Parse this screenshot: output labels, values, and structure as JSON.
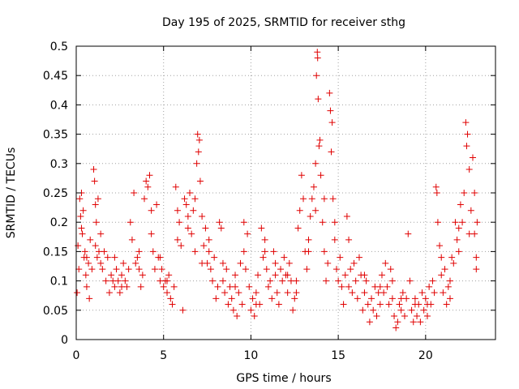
{
  "chart_data": {
    "type": "scatter",
    "title": "Day 195 of 2025, SRMTID for receiver sthg",
    "xlabel": "GPS time / hours",
    "ylabel": "SRMTID / TECUs",
    "xlim": [
      0,
      24
    ],
    "ylim": [
      0,
      0.5
    ],
    "xticks": [
      0,
      5,
      10,
      15,
      20
    ],
    "xtick_labels": [
      "0",
      "5",
      "10",
      "15",
      "20"
    ],
    "yticks": [
      0,
      0.05,
      0.1,
      0.15,
      0.2,
      0.25,
      0.3,
      0.35,
      0.4,
      0.45,
      0.5
    ],
    "ytick_labels": [
      "0",
      "0.05",
      "0.1",
      "0.15",
      "0.2",
      "0.25",
      "0.3",
      "0.35",
      "0.4",
      "0.45",
      "0.5"
    ],
    "grid": true,
    "marker": "+",
    "color": "#e00000",
    "series": [
      {
        "name": "SRMTID",
        "points": [
          [
            0.05,
            0.08
          ],
          [
            0.1,
            0.16
          ],
          [
            0.15,
            0.12
          ],
          [
            0.2,
            0.24
          ],
          [
            0.25,
            0.21
          ],
          [
            0.3,
            0.25
          ],
          [
            0.35,
            0.18
          ],
          [
            0.4,
            0.22
          ],
          [
            0.45,
            0.14
          ],
          [
            0.5,
            0.15
          ],
          [
            0.55,
            0.11
          ],
          [
            0.6,
            0.09
          ],
          [
            0.7,
            0.13
          ],
          [
            0.75,
            0.07
          ],
          [
            0.8,
            0.17
          ],
          [
            0.9,
            0.12
          ],
          [
            1.0,
            0.29
          ],
          [
            1.05,
            0.27
          ],
          [
            1.1,
            0.16
          ],
          [
            1.15,
            0.2
          ],
          [
            1.2,
            0.14
          ],
          [
            1.25,
            0.24
          ],
          [
            1.3,
            0.15
          ],
          [
            1.4,
            0.18
          ],
          [
            1.5,
            0.12
          ],
          [
            1.6,
            0.15
          ],
          [
            1.7,
            0.1
          ],
          [
            1.8,
            0.14
          ],
          [
            1.9,
            0.08
          ],
          [
            2.0,
            0.11
          ],
          [
            2.1,
            0.1
          ],
          [
            2.2,
            0.09
          ],
          [
            2.3,
            0.12
          ],
          [
            2.4,
            0.1
          ],
          [
            2.5,
            0.08
          ],
          [
            2.6,
            0.11
          ],
          [
            2.7,
            0.13
          ],
          [
            2.8,
            0.1
          ],
          [
            2.9,
            0.09
          ],
          [
            3.0,
            0.12
          ],
          [
            3.1,
            0.2
          ],
          [
            3.2,
            0.17
          ],
          [
            3.3,
            0.25
          ],
          [
            3.4,
            0.13
          ],
          [
            3.5,
            0.14
          ],
          [
            3.6,
            0.12
          ],
          [
            3.7,
            0.09
          ],
          [
            3.8,
            0.11
          ],
          [
            3.9,
            0.24
          ],
          [
            4.0,
            0.27
          ],
          [
            4.1,
            0.26
          ],
          [
            4.2,
            0.28
          ],
          [
            4.3,
            0.22
          ],
          [
            4.4,
            0.15
          ],
          [
            4.5,
            0.12
          ],
          [
            4.6,
            0.23
          ],
          [
            4.7,
            0.14
          ],
          [
            4.8,
            0.1
          ],
          [
            4.9,
            0.12
          ],
          [
            5.0,
            0.09
          ],
          [
            5.1,
            0.1
          ],
          [
            5.2,
            0.08
          ],
          [
            5.3,
            0.11
          ],
          [
            5.4,
            0.07
          ],
          [
            5.5,
            0.06
          ],
          [
            5.6,
            0.09
          ],
          [
            5.7,
            0.26
          ],
          [
            5.8,
            0.22
          ],
          [
            5.9,
            0.2
          ],
          [
            6.0,
            0.16
          ],
          [
            6.1,
            0.05
          ],
          [
            6.2,
            0.24
          ],
          [
            6.3,
            0.23
          ],
          [
            6.4,
            0.19
          ],
          [
            6.5,
            0.25
          ],
          [
            6.6,
            0.18
          ],
          [
            6.7,
            0.22
          ],
          [
            6.8,
            0.24
          ],
          [
            6.9,
            0.3
          ],
          [
            6.95,
            0.35
          ],
          [
            7.0,
            0.32
          ],
          [
            7.05,
            0.34
          ],
          [
            7.1,
            0.27
          ],
          [
            7.2,
            0.21
          ],
          [
            7.3,
            0.16
          ],
          [
            7.4,
            0.19
          ],
          [
            7.5,
            0.13
          ],
          [
            7.6,
            0.17
          ],
          [
            7.7,
            0.12
          ],
          [
            7.8,
            0.1
          ],
          [
            7.9,
            0.14
          ],
          [
            8.0,
            0.07
          ],
          [
            8.1,
            0.09
          ],
          [
            8.2,
            0.2
          ],
          [
            8.3,
            0.19
          ],
          [
            8.4,
            0.1
          ],
          [
            8.5,
            0.08
          ],
          [
            8.6,
            0.12
          ],
          [
            8.7,
            0.06
          ],
          [
            8.8,
            0.09
          ],
          [
            8.9,
            0.07
          ],
          [
            9.0,
            0.05
          ],
          [
            9.1,
            0.11
          ],
          [
            9.2,
            0.04
          ],
          [
            9.3,
            0.08
          ],
          [
            9.4,
            0.13
          ],
          [
            9.5,
            0.06
          ],
          [
            9.6,
            0.2
          ],
          [
            9.7,
            0.12
          ],
          [
            9.8,
            0.18
          ],
          [
            9.9,
            0.09
          ],
          [
            10.0,
            0.05
          ],
          [
            10.1,
            0.07
          ],
          [
            10.2,
            0.04
          ],
          [
            10.3,
            0.08
          ],
          [
            10.4,
            0.11
          ],
          [
            10.5,
            0.06
          ],
          [
            10.6,
            0.19
          ],
          [
            10.7,
            0.14
          ],
          [
            10.8,
            0.17
          ],
          [
            10.9,
            0.12
          ],
          [
            11.0,
            0.09
          ],
          [
            11.1,
            0.1
          ],
          [
            11.2,
            0.07
          ],
          [
            11.3,
            0.15
          ],
          [
            11.4,
            0.11
          ],
          [
            11.5,
            0.08
          ],
          [
            11.6,
            0.06
          ],
          [
            11.7,
            0.12
          ],
          [
            11.8,
            0.1
          ],
          [
            11.9,
            0.14
          ],
          [
            12.0,
            0.11
          ],
          [
            12.1,
            0.08
          ],
          [
            12.2,
            0.13
          ],
          [
            12.3,
            0.1
          ],
          [
            12.4,
            0.05
          ],
          [
            12.5,
            0.07
          ],
          [
            12.6,
            0.1
          ],
          [
            12.7,
            0.19
          ],
          [
            12.8,
            0.22
          ],
          [
            12.9,
            0.28
          ],
          [
            13.0,
            0.24
          ],
          [
            13.1,
            0.15
          ],
          [
            13.2,
            0.12
          ],
          [
            13.3,
            0.17
          ],
          [
            13.4,
            0.21
          ],
          [
            13.5,
            0.24
          ],
          [
            13.6,
            0.26
          ],
          [
            13.7,
            0.3
          ],
          [
            13.75,
            0.45
          ],
          [
            13.8,
            0.49
          ],
          [
            13.82,
            0.48
          ],
          [
            13.85,
            0.41
          ],
          [
            13.9,
            0.33
          ],
          [
            13.95,
            0.34
          ],
          [
            14.0,
            0.28
          ],
          [
            14.1,
            0.2
          ],
          [
            14.2,
            0.15
          ],
          [
            14.3,
            0.1
          ],
          [
            14.4,
            0.13
          ],
          [
            14.5,
            0.42
          ],
          [
            14.55,
            0.39
          ],
          [
            14.6,
            0.32
          ],
          [
            14.65,
            0.37
          ],
          [
            14.7,
            0.24
          ],
          [
            14.8,
            0.17
          ],
          [
            14.9,
            0.12
          ],
          [
            15.0,
            0.1
          ],
          [
            15.1,
            0.14
          ],
          [
            15.2,
            0.09
          ],
          [
            15.3,
            0.06
          ],
          [
            15.4,
            0.11
          ],
          [
            15.5,
            0.21
          ],
          [
            15.6,
            0.17
          ],
          [
            15.7,
            0.12
          ],
          [
            15.8,
            0.08
          ],
          [
            15.9,
            0.13
          ],
          [
            16.0,
            0.1
          ],
          [
            16.1,
            0.07
          ],
          [
            16.2,
            0.14
          ],
          [
            16.3,
            0.11
          ],
          [
            16.4,
            0.05
          ],
          [
            16.5,
            0.08
          ],
          [
            16.6,
            0.1
          ],
          [
            16.7,
            0.06
          ],
          [
            16.8,
            0.03
          ],
          [
            16.9,
            0.07
          ],
          [
            17.0,
            0.05
          ],
          [
            17.1,
            0.09
          ],
          [
            17.2,
            0.04
          ],
          [
            17.3,
            0.08
          ],
          [
            17.4,
            0.06
          ],
          [
            17.5,
            0.11
          ],
          [
            17.6,
            0.08
          ],
          [
            17.7,
            0.13
          ],
          [
            17.8,
            0.09
          ],
          [
            17.9,
            0.06
          ],
          [
            18.0,
            0.12
          ],
          [
            18.1,
            0.07
          ],
          [
            18.2,
            0.04
          ],
          [
            18.3,
            0.02
          ],
          [
            18.4,
            0.03
          ],
          [
            18.5,
            0.06
          ],
          [
            18.6,
            0.05
          ],
          [
            18.7,
            0.08
          ],
          [
            18.8,
            0.04
          ],
          [
            18.9,
            0.07
          ],
          [
            19.0,
            0.18
          ],
          [
            19.1,
            0.1
          ],
          [
            19.2,
            0.05
          ],
          [
            19.3,
            0.03
          ],
          [
            19.4,
            0.07
          ],
          [
            19.5,
            0.04
          ],
          [
            19.6,
            0.06
          ],
          [
            19.7,
            0.03
          ],
          [
            19.8,
            0.08
          ],
          [
            19.9,
            0.05
          ],
          [
            20.0,
            0.07
          ],
          [
            20.1,
            0.04
          ],
          [
            20.2,
            0.09
          ],
          [
            20.3,
            0.06
          ],
          [
            20.4,
            0.1
          ],
          [
            20.5,
            0.08
          ],
          [
            20.6,
            0.26
          ],
          [
            20.65,
            0.25
          ],
          [
            20.7,
            0.2
          ],
          [
            20.8,
            0.16
          ],
          [
            20.9,
            0.11
          ],
          [
            21.0,
            0.08
          ],
          [
            21.1,
            0.12
          ],
          [
            21.2,
            0.06
          ],
          [
            21.3,
            0.09
          ],
          [
            21.4,
            0.07
          ],
          [
            21.5,
            0.14
          ],
          [
            21.6,
            0.13
          ],
          [
            21.7,
            0.2
          ],
          [
            21.8,
            0.17
          ],
          [
            21.9,
            0.15
          ],
          [
            22.0,
            0.23
          ],
          [
            22.1,
            0.2
          ],
          [
            22.2,
            0.25
          ],
          [
            22.3,
            0.37
          ],
          [
            22.35,
            0.33
          ],
          [
            22.4,
            0.35
          ],
          [
            22.5,
            0.29
          ],
          [
            22.6,
            0.22
          ],
          [
            22.7,
            0.31
          ],
          [
            22.8,
            0.18
          ],
          [
            22.9,
            0.14
          ],
          [
            22.95,
            0.2
          ],
          [
            0.3,
            0.19
          ],
          [
            0.6,
            0.14
          ],
          [
            1.1,
            0.23
          ],
          [
            1.4,
            0.13
          ],
          [
            2.2,
            0.14
          ],
          [
            2.6,
            0.09
          ],
          [
            3.6,
            0.15
          ],
          [
            4.3,
            0.18
          ],
          [
            4.8,
            0.14
          ],
          [
            5.2,
            0.1
          ],
          [
            5.8,
            0.17
          ],
          [
            6.4,
            0.21
          ],
          [
            6.8,
            0.15
          ],
          [
            7.2,
            0.13
          ],
          [
            7.6,
            0.15
          ],
          [
            8.4,
            0.13
          ],
          [
            9.1,
            0.09
          ],
          [
            9.6,
            0.15
          ],
          [
            10.3,
            0.06
          ],
          [
            10.8,
            0.15
          ],
          [
            11.4,
            0.13
          ],
          [
            12.1,
            0.11
          ],
          [
            12.6,
            0.08
          ],
          [
            13.3,
            0.15
          ],
          [
            13.7,
            0.22
          ],
          [
            14.2,
            0.24
          ],
          [
            14.8,
            0.2
          ],
          [
            15.6,
            0.09
          ],
          [
            16.5,
            0.11
          ],
          [
            17.4,
            0.09
          ],
          [
            18.1,
            0.1
          ],
          [
            18.6,
            0.07
          ],
          [
            19.4,
            0.06
          ],
          [
            20.1,
            0.06
          ],
          [
            20.9,
            0.14
          ],
          [
            21.4,
            0.1
          ],
          [
            21.9,
            0.19
          ],
          [
            22.5,
            0.18
          ],
          [
            22.8,
            0.25
          ],
          [
            22.9,
            0.12
          ]
        ]
      }
    ]
  }
}
